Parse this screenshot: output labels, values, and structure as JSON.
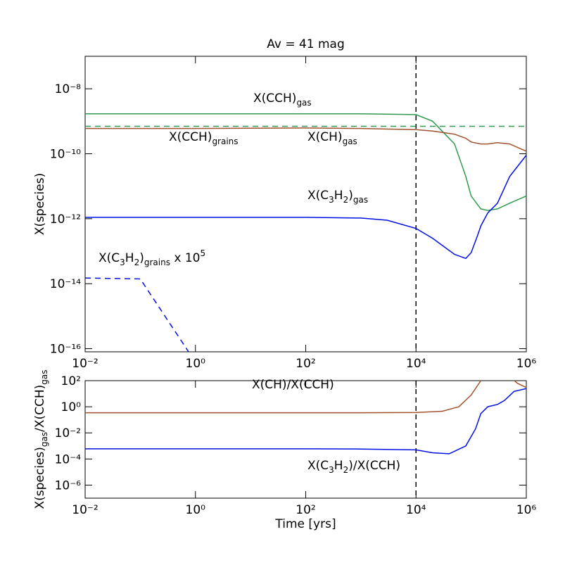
{
  "chart_data": [
    {
      "type": "line",
      "title": "Av = 41 mag",
      "y_label": "X(species)",
      "log_x": true,
      "log_y": true,
      "xlim": [
        0.01,
        1000000
      ],
      "ylim": [
        8e-17,
        1e-07
      ],
      "xticks": [
        {
          "value": 0.01,
          "label": "10⁻²"
        },
        {
          "value": 1,
          "label": "10⁰"
        },
        {
          "value": 100,
          "label": "10²"
        },
        {
          "value": 10000,
          "label": "10⁴"
        },
        {
          "value": 1000000,
          "label": "10⁶"
        }
      ],
      "yticks": [
        {
          "value": 1e-08,
          "label": "10⁻⁸"
        },
        {
          "value": 1e-10,
          "label": "10⁻¹⁰"
        },
        {
          "value": 1e-12,
          "label": "10⁻¹²"
        },
        {
          "value": 1e-14,
          "label": "10⁻¹⁴"
        },
        {
          "value": 1e-16,
          "label": "10⁻¹⁶"
        }
      ],
      "vline": 10000,
      "series": [
        {
          "name": "X(CCH)gas",
          "color": "#2f9a50",
          "dashed": false,
          "x": [
            0.01,
            1,
            100,
            1000,
            10000,
            20000,
            50000,
            80000,
            100000,
            150000,
            200000,
            300000,
            500000,
            1000000
          ],
          "values": [
            1.7e-09,
            1.7e-09,
            1.7e-09,
            1.7e-09,
            1.6e-09,
            1e-09,
            2e-10,
            2e-11,
            5e-12,
            2e-12,
            1.8e-12,
            2e-12,
            3e-12,
            5e-12
          ]
        },
        {
          "name": "X(CCH)grains",
          "color": "#2f9a50",
          "dashed": true,
          "x": [
            0.01,
            1000000
          ],
          "values": [
            7e-10,
            7e-10
          ]
        },
        {
          "name": "X(CH)gas",
          "color": "#a0522d",
          "dashed": false,
          "x": [
            0.01,
            1,
            100,
            1000,
            10000,
            20000,
            50000,
            80000,
            100000,
            150000,
            200000,
            300000,
            500000,
            1000000
          ],
          "values": [
            6e-10,
            6e-10,
            6.2e-10,
            6e-10,
            5.5e-10,
            5e-10,
            4e-10,
            3e-10,
            2.3e-10,
            2e-10,
            2e-10,
            2.2e-10,
            2e-10,
            1.2e-10
          ]
        },
        {
          "name": "X(C3H2)gas",
          "color": "#0010e0",
          "dashed": false,
          "x": [
            0.01,
            1,
            100,
            1000,
            3000,
            10000,
            20000,
            50000,
            80000,
            100000,
            130000,
            150000,
            200000,
            300000,
            500000,
            1000000
          ],
          "values": [
            1.1e-12,
            1.1e-12,
            1.1e-12,
            1.05e-12,
            9e-13,
            5e-13,
            2.5e-13,
            8e-14,
            6e-14,
            9e-14,
            3e-13,
            6e-13,
            1.5e-12,
            3e-12,
            2e-11,
            9e-11
          ]
        },
        {
          "name": "X(C3H2)grains x 10^5",
          "color": "#0010e0",
          "dashed": true,
          "x": [
            0.01,
            0.1,
            0.75
          ],
          "values": [
            1.5e-14,
            1.4e-14,
            8e-17
          ]
        }
      ],
      "annotations": [
        {
          "color": "#2f9a50",
          "parts": [
            {
              "text": "X(CCH)"
            },
            {
              "sub": "gas"
            }
          ]
        },
        {
          "color": "#2f9a50",
          "parts": [
            {
              "text": "X(CCH)"
            },
            {
              "sub": "grains"
            }
          ]
        },
        {
          "color": "#a0522d",
          "parts": [
            {
              "text": "X(CH)"
            },
            {
              "sub": "gas"
            }
          ]
        },
        {
          "color": "#0010e0",
          "parts": [
            {
              "text": "X(C"
            },
            {
              "sub": "3"
            },
            {
              "text": "H"
            },
            {
              "sub": "2"
            },
            {
              "text": ")"
            },
            {
              "sub": "gas"
            }
          ]
        },
        {
          "color": "#0010e0",
          "parts": [
            {
              "text": "X(C"
            },
            {
              "sub": "3"
            },
            {
              "text": "H"
            },
            {
              "sub": "2"
            },
            {
              "text": ")"
            },
            {
              "sub": "grains"
            },
            {
              "text": " x 10"
            },
            {
              "sup": "5"
            }
          ]
        }
      ]
    },
    {
      "type": "line",
      "x_label": "Time [yrs]",
      "log_x": true,
      "log_y": true,
      "y_label_parts": [
        {
          "text": "X(species)"
        },
        {
          "sub": "gas"
        },
        {
          "text": "/X(CCH)"
        },
        {
          "sub": "gas"
        }
      ],
      "xlim": [
        0.01,
        1000000
      ],
      "ylim": [
        1e-07,
        100
      ],
      "xticks": [
        {
          "value": 0.01,
          "label": "10⁻²"
        },
        {
          "value": 1,
          "label": "10⁰"
        },
        {
          "value": 100,
          "label": "10²"
        },
        {
          "value": 10000,
          "label": "10⁴"
        },
        {
          "value": 1000000,
          "label": "10⁶"
        }
      ],
      "yticks": [
        {
          "value": 100,
          "label": "10²"
        },
        {
          "value": 1,
          "label": "10⁰"
        },
        {
          "value": 0.01,
          "label": "10⁻²"
        },
        {
          "value": 0.0001,
          "label": "10⁻⁴"
        },
        {
          "value": 1e-06,
          "label": "10⁻⁶"
        }
      ],
      "vline": 10000,
      "series": [
        {
          "name": "X(CH)/X(CCH)",
          "color": "#a0522d",
          "dashed": false,
          "x": [
            0.01,
            1,
            100,
            1000,
            10000,
            30000,
            60000,
            100000,
            150000,
            200000,
            500000,
            700000,
            1000000
          ],
          "values": [
            0.35,
            0.35,
            0.35,
            0.35,
            0.36,
            0.45,
            1,
            8,
            100,
            300,
            200,
            60,
            30
          ]
        },
        {
          "name": "X(C3H2)/X(CCH)",
          "color": "#0010e0",
          "dashed": false,
          "x": [
            0.01,
            1,
            100,
            1000,
            10000,
            20000,
            40000,
            80000,
            120000,
            150000,
            200000,
            300000,
            400000,
            600000,
            1000000
          ],
          "values": [
            0.0006,
            0.0006,
            0.0006,
            0.00058,
            0.0005,
            0.0003,
            0.00025,
            0.001,
            0.02,
            0.3,
            1,
            1.5,
            3,
            15,
            25
          ]
        }
      ],
      "annotations": [
        {
          "color": "#a0522d",
          "parts": [
            {
              "text": "X(CH)/X(CCH)"
            }
          ]
        },
        {
          "color": "#0010e0",
          "parts": [
            {
              "text": "X(C"
            },
            {
              "sub": "3"
            },
            {
              "text": "H"
            },
            {
              "sub": "2"
            },
            {
              "text": ")/X(CCH)"
            }
          ]
        }
      ]
    }
  ]
}
